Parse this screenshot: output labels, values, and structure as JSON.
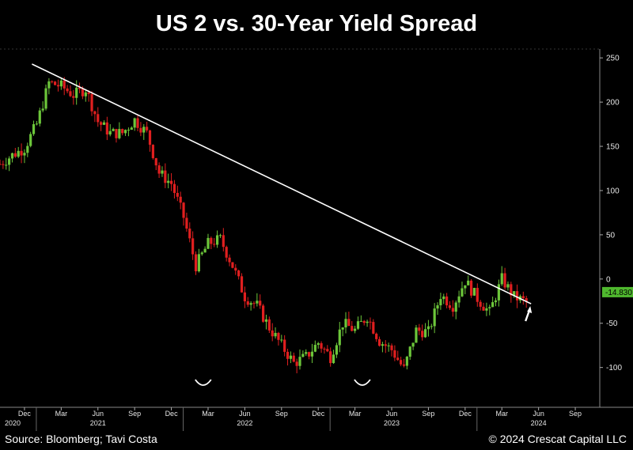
{
  "title": "US 2 vs. 30-Year Yield Spread",
  "source": "Source: Bloomberg; Tavi Costa",
  "copyright": "© 2024 Crescat Capital LLC",
  "last_value_label": "-14.830",
  "colors": {
    "up": "#6cc63a",
    "down": "#e01f1f",
    "trendline": "#ffffff",
    "last_value_bg": "#4fb82e",
    "background": "#000000"
  },
  "chart_data": {
    "type": "candlestick",
    "title": "US 2 vs. 30-Year Yield Spread",
    "y_axis": {
      "position": "right",
      "ticks": [
        250,
        200,
        150,
        100,
        50,
        0,
        -50,
        -100
      ],
      "ylim": [
        -145,
        260
      ]
    },
    "x_axis": {
      "month_ticks": [
        "Dec",
        "Mar",
        "Jun",
        "Sep",
        "Dec",
        "Mar",
        "Jun",
        "Sep",
        "Dec",
        "Mar",
        "Jun",
        "Sep",
        "Dec",
        "Mar",
        "Jun",
        "Sep"
      ],
      "year_labels": [
        "2020",
        "2021",
        "2022",
        "2023",
        "2024"
      ],
      "range": [
        "2020-10",
        "2024-11"
      ]
    },
    "last_value": -14.83,
    "trendline": {
      "start": {
        "date": "2021-01",
        "value": 243
      },
      "end": {
        "date": "2024-05",
        "value": -28
      }
    },
    "annotations": [
      "double bottom markers near 2022-02 and 2023-03",
      "up arrow at latest breakout"
    ],
    "series": [
      {
        "interval": "weekly-approx",
        "dates": [
          "2020-10",
          "2020-11",
          "2020-12",
          "2021-01",
          "2021-02",
          "2021-03",
          "2021-04",
          "2021-05",
          "2021-06",
          "2021-07",
          "2021-08",
          "2021-09",
          "2021-10",
          "2021-11",
          "2021-12",
          "2022-01",
          "2022-02",
          "2022-03",
          "2022-04",
          "2022-05",
          "2022-06",
          "2022-07",
          "2022-08",
          "2022-09",
          "2022-10",
          "2022-11",
          "2022-12",
          "2023-01",
          "2023-02",
          "2023-03",
          "2023-04",
          "2023-05",
          "2023-06",
          "2023-07",
          "2023-08",
          "2023-09",
          "2023-10",
          "2023-11",
          "2023-12",
          "2024-01",
          "2024-02",
          "2024-03",
          "2024-04",
          "2024-05"
        ],
        "values": [
          130,
          140,
          148,
          175,
          222,
          218,
          208,
          215,
          178,
          165,
          165,
          180,
          165,
          120,
          108,
          70,
          15,
          40,
          45,
          15,
          -20,
          -30,
          -55,
          -75,
          -95,
          -88,
          -72,
          -88,
          -50,
          -58,
          -42,
          -70,
          -80,
          -102,
          -58,
          -60,
          -18,
          -30,
          -2,
          -22,
          -38,
          0,
          -20,
          -26
        ]
      }
    ]
  }
}
